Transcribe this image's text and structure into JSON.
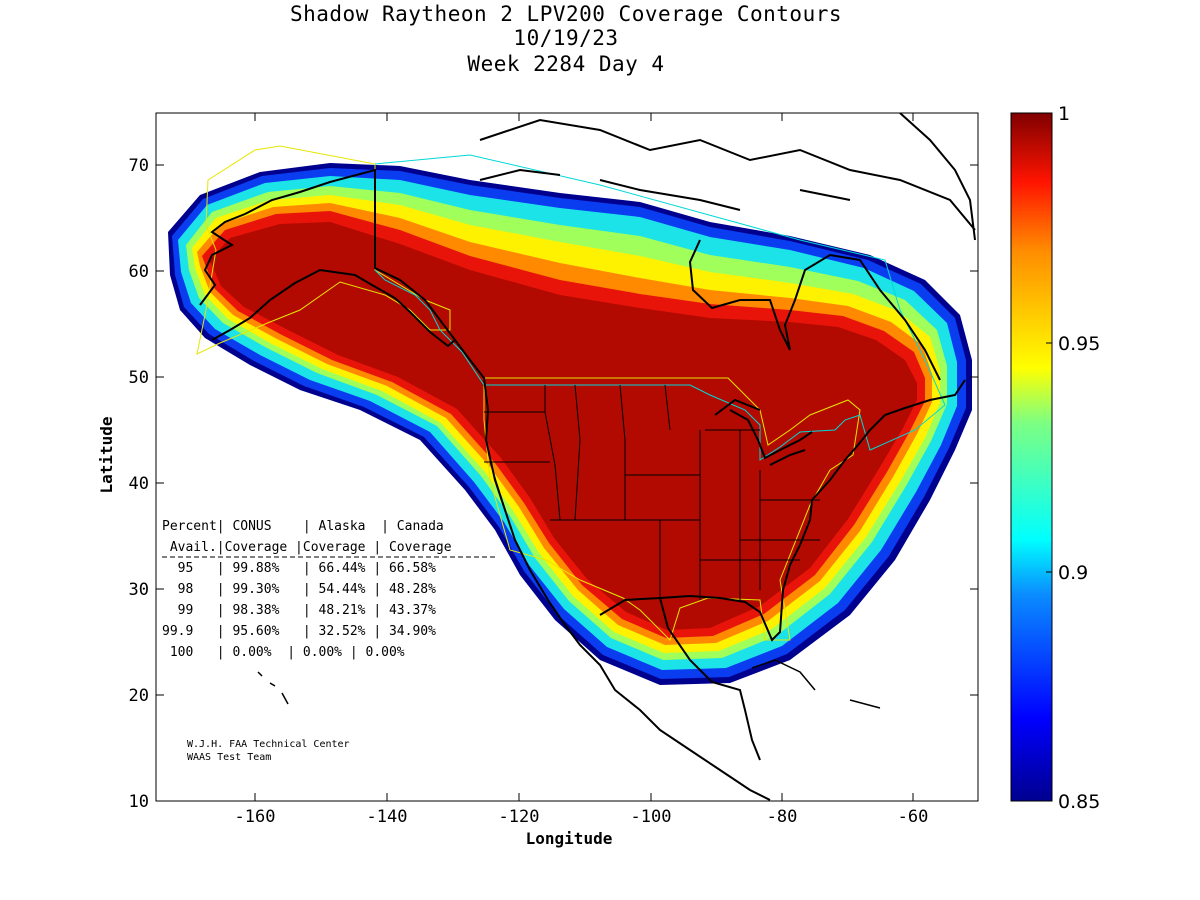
{
  "title": {
    "line1": "Shadow Raytheon 2 LPV200 Coverage Contours",
    "line2": "10/19/23",
    "line3": "Week 2284 Day 4"
  },
  "map": {
    "xlabel": "Longitude",
    "ylabel": "Latitude",
    "xlim": [
      -175,
      -50
    ],
    "ylim": [
      10,
      75
    ],
    "x_ticks": [
      "-160",
      "-140",
      "-120",
      "-100",
      "-80",
      "-60"
    ],
    "y_ticks": [
      "10",
      "20",
      "30",
      "40",
      "50",
      "60",
      "70"
    ]
  },
  "colorbar": {
    "range": [
      0.85,
      1
    ],
    "tick_labels": [
      "1",
      "0.95",
      "0.9",
      "0.85"
    ]
  },
  "stats_table": {
    "header1": "Percent| CONUS    | Alaska  | Canada",
    "header2": " Avail.|Coverage |Coverage | Coverage",
    "rows": [
      "  95   | 99.88%   | 66.44% | 66.58%",
      "  98   | 99.30%   | 54.44% | 48.28%",
      "  99   | 98.38%   | 48.21% | 43.37%",
      "99.9   | 95.60%   | 32.52% | 34.90%",
      " 100   | 0.00%  | 0.00% | 0.00%"
    ]
  },
  "credit": {
    "line1": "W.J.H. FAA Technical Center",
    "line2": "WAAS Test Team"
  },
  "colors": {
    "max": "#a10000",
    "red": "#e8140a",
    "orange": "#ff8a00",
    "yellow": "#fff200",
    "cyan": "#1ce3e8",
    "blue": "#0a3cf0",
    "min": "#00008f"
  }
}
